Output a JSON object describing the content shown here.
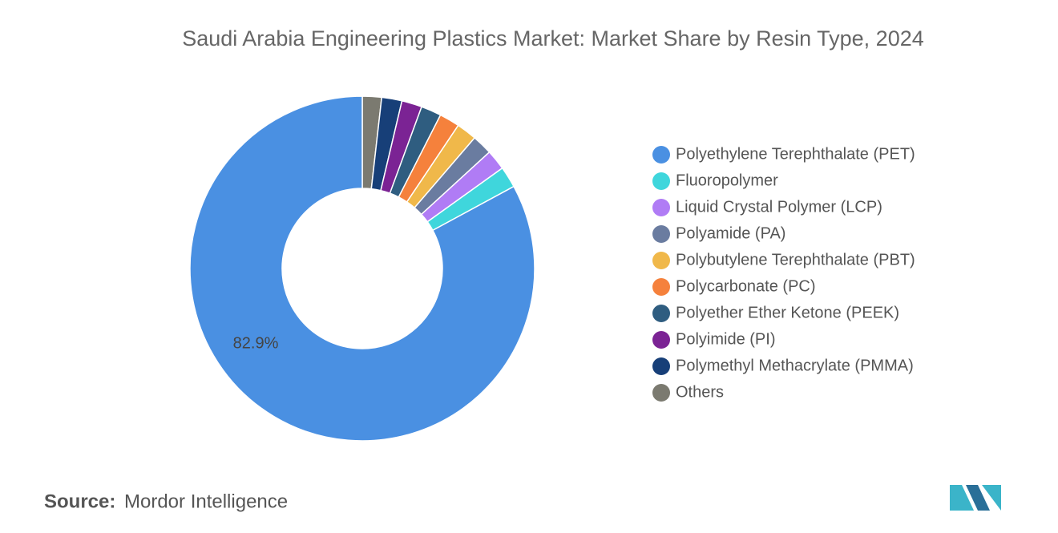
{
  "chart_data": {
    "type": "donut",
    "title": "Saudi Arabia Engineering Plastics Market: Market Share by Resin Type, 2024",
    "categories": [
      "Polyethylene Terephthalate (PET)",
      "Fluoropolymer",
      "Liquid Crystal Polymer (LCP)",
      "Polyamide (PA)",
      "Polybutylene Terephthalate (PBT)",
      "Polycarbonate (PC)",
      "Polyether Ether Ketone (PEEK)",
      "Polyimide (PI)",
      "Polymethyl Methacrylate (PMMA)",
      "Others"
    ],
    "values": [
      82.9,
      2.0,
      1.9,
      1.9,
      1.9,
      1.9,
      1.9,
      1.9,
      1.9,
      1.8
    ],
    "value_labels": [
      "82.9%",
      null,
      null,
      null,
      null,
      null,
      null,
      null,
      null,
      null
    ],
    "colors": [
      "#4a90e2",
      "#3fd6dc",
      "#b07cf5",
      "#6a7ca0",
      "#f0b84a",
      "#f5813c",
      "#2f5d80",
      "#7b2394",
      "#173f78",
      "#7b7a70"
    ],
    "legend": "right"
  },
  "source": {
    "label": "Source:",
    "text": "Mordor Intelligence"
  }
}
